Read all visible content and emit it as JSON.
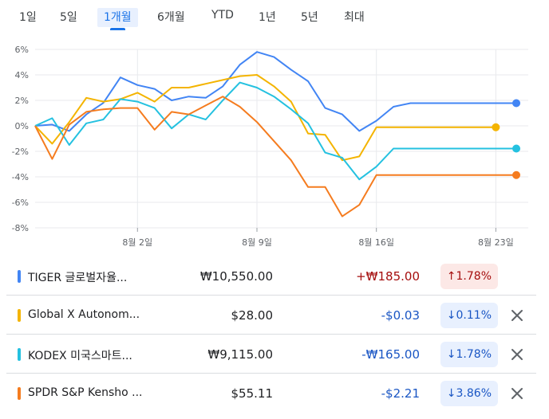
{
  "tabs": [
    {
      "label": "1일",
      "active": false
    },
    {
      "label": "5일",
      "active": false
    },
    {
      "label": "1개월",
      "active": true
    },
    {
      "label": "6개월",
      "active": false
    },
    {
      "label": "YTD",
      "active": false
    },
    {
      "label": "1년",
      "active": false
    },
    {
      "label": "5년",
      "active": false
    },
    {
      "label": "최대",
      "active": false
    }
  ],
  "chart_data": {
    "type": "line",
    "ylim": [
      -8,
      6
    ],
    "yticks": [
      6,
      4,
      2,
      0,
      -2,
      -4,
      -6,
      -8
    ],
    "ytick_labels": [
      "6%",
      "4%",
      "2%",
      "0%",
      "-2%",
      "-4%",
      "-6%",
      "-8%"
    ],
    "xticks": [
      {
        "x": 6,
        "label": "8월 2일"
      },
      {
        "x": 13,
        "label": "8월 9일"
      },
      {
        "x": 20,
        "label": "8월 16일"
      },
      {
        "x": 27,
        "label": "8월 23일"
      }
    ],
    "xlim": [
      0,
      28.9
    ],
    "grid": true,
    "series": [
      {
        "color": "#4285f4",
        "x": [
          0,
          1,
          2,
          3,
          4,
          5,
          6,
          7,
          8,
          9,
          10,
          11,
          12,
          13,
          14,
          15,
          16,
          17,
          18,
          19,
          20,
          21,
          22,
          23,
          24,
          25,
          26,
          27,
          28.2
        ],
        "values": [
          0,
          0.1,
          -0.4,
          0.9,
          1.8,
          3.8,
          3.2,
          2.9,
          2.0,
          2.3,
          2.2,
          3.1,
          4.8,
          5.8,
          5.4,
          4.4,
          3.5,
          1.4,
          0.9,
          -0.4,
          0.4,
          1.5,
          1.78,
          1.78,
          1.78,
          1.78,
          1.78,
          1.78,
          1.78
        ]
      },
      {
        "color": "#f4b400",
        "x": [
          0,
          1,
          2,
          3,
          4,
          5,
          6,
          7,
          8,
          9,
          10,
          11,
          12,
          13,
          14,
          15,
          16,
          17,
          18,
          19,
          20,
          21,
          22,
          23,
          24,
          25,
          26,
          27
        ],
        "values": [
          0,
          -1.4,
          0.3,
          2.2,
          1.9,
          2.1,
          2.6,
          1.9,
          3.0,
          3.0,
          3.3,
          3.6,
          3.9,
          4.0,
          3.1,
          1.9,
          -0.6,
          -0.7,
          -2.7,
          -2.4,
          -0.11,
          -0.11,
          -0.11,
          -0.11,
          -0.11,
          -0.11,
          -0.11,
          -0.11
        ]
      },
      {
        "color": "#24c1e0",
        "x": [
          0,
          1,
          2,
          3,
          4,
          5,
          6,
          7,
          8,
          9,
          10,
          11,
          12,
          13,
          14,
          15,
          16,
          17,
          18,
          19,
          20,
          21,
          22,
          23,
          24,
          25,
          26,
          27,
          28.2
        ],
        "values": [
          0,
          0.6,
          -1.5,
          0.2,
          0.5,
          2.1,
          1.9,
          1.4,
          -0.2,
          0.9,
          0.5,
          2.0,
          3.4,
          3.0,
          2.3,
          1.3,
          0.2,
          -2.1,
          -2.5,
          -4.2,
          -3.2,
          -1.78,
          -1.78,
          -1.78,
          -1.78,
          -1.78,
          -1.78,
          -1.78,
          -1.78
        ]
      },
      {
        "color": "#f57c1f",
        "x": [
          0,
          1,
          2,
          3,
          4,
          5,
          6,
          7,
          8,
          9,
          10,
          11,
          12,
          13,
          14,
          15,
          16,
          17,
          18,
          19,
          20,
          21,
          22,
          23,
          24,
          25,
          26,
          27,
          28.2
        ],
        "values": [
          0,
          -2.6,
          0.1,
          1.1,
          1.3,
          1.4,
          1.4,
          -0.3,
          1.1,
          0.9,
          1.6,
          2.3,
          1.5,
          0.3,
          -1.2,
          -2.7,
          -4.8,
          -4.8,
          -7.1,
          -6.2,
          -3.86,
          -3.86,
          -3.86,
          -3.86,
          -3.86,
          -3.86,
          -3.86,
          -3.86,
          -3.86
        ]
      }
    ]
  },
  "rows": [
    {
      "color": "#4285f4",
      "name": "TIGER 글로벌자율...",
      "price": "₩10,550.00",
      "change": "+₩185.00",
      "change_color": "#a50e0e",
      "pct": "1.78%",
      "direction": "up",
      "arrow": "↑",
      "close": false
    },
    {
      "color": "#f4b400",
      "name": "Global X Autonom...",
      "price": "$28.00",
      "change": "-$0.03",
      "change_color": "#1a56c4",
      "pct": "0.11%",
      "direction": "down",
      "arrow": "↓",
      "close": true
    },
    {
      "color": "#24c1e0",
      "name": "KODEX 미국스마트...",
      "price": "₩9,115.00",
      "change": "-₩165.00",
      "change_color": "#1a56c4",
      "pct": "1.78%",
      "direction": "down",
      "arrow": "↓",
      "close": true
    },
    {
      "color": "#f57c1f",
      "name": "SPDR S&P Kensho ...",
      "price": "$55.11",
      "change": "-$2.21",
      "change_color": "#1a56c4",
      "pct": "3.86%",
      "direction": "down",
      "arrow": "↓",
      "close": true
    }
  ]
}
